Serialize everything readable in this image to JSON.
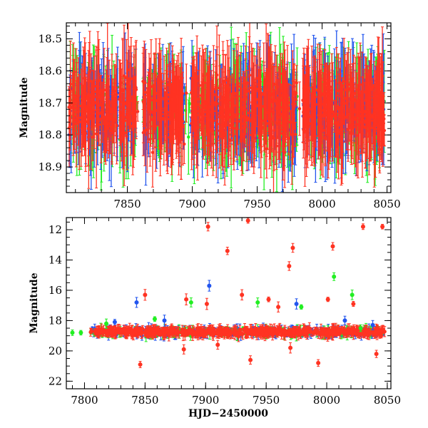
{
  "colors": {
    "blue": "#2255ee",
    "green": "#22ee22",
    "red": "#ff3322"
  },
  "chart_data": [
    {
      "type": "scatter",
      "title": "",
      "xlabel": "",
      "ylabel": "Magnitude",
      "xlim": [
        7803,
        8053
      ],
      "ylim": [
        18.98,
        18.45
      ],
      "xticks": [
        7850,
        7900,
        7950,
        8000,
        8050
      ],
      "yticks": [
        18.5,
        18.6,
        18.7,
        18.8,
        18.9
      ],
      "grid": false,
      "legend": "none",
      "note_series": "Zoomed view: photometry with error bars in three filters (colors: blue, green, red); points dense and extending beyond plot limits.",
      "series": [
        {
          "color": "blue",
          "x_range": [
            7805,
            8048
          ],
          "y_center": 18.72,
          "y_spread": 0.35
        },
        {
          "color": "green",
          "x_range": [
            7805,
            8048
          ],
          "y_center": 18.72,
          "y_spread": 0.35
        },
        {
          "color": "red",
          "x_range": [
            7805,
            8048
          ],
          "y_center": 18.72,
          "y_spread": 0.35
        }
      ]
    },
    {
      "type": "scatter",
      "title": "",
      "xlabel": "HJD−2450000",
      "ylabel": "Magnitude",
      "xlim": [
        7785,
        8053
      ],
      "ylim": [
        22.5,
        11.2
      ],
      "xticks": [
        7800,
        7850,
        7900,
        7950,
        8000,
        8050
      ],
      "yticks": [
        12,
        14,
        16,
        18,
        20,
        22
      ],
      "grid": false,
      "legend": "none",
      "series": [
        {
          "color": "red",
          "band": {
            "x_range": [
              7805,
              8048
            ],
            "y_center": 18.75,
            "y_spread": 0.5
          },
          "points": [
            {
              "x": 7902,
              "y": 11.8
            },
            {
              "x": 7935,
              "y": 11.4
            },
            {
              "x": 7918,
              "y": 13.4
            },
            {
              "x": 7972,
              "y": 13.2
            },
            {
              "x": 7969,
              "y": 14.4
            },
            {
              "x": 8005,
              "y": 13.1
            },
            {
              "x": 8030,
              "y": 11.8
            },
            {
              "x": 8046,
              "y": 11.8
            },
            {
              "x": 7850,
              "y": 16.3
            },
            {
              "x": 7884,
              "y": 16.6
            },
            {
              "x": 7901,
              "y": 16.9
            },
            {
              "x": 7930,
              "y": 16.3
            },
            {
              "x": 7952,
              "y": 16.6
            },
            {
              "x": 7960,
              "y": 17.1
            },
            {
              "x": 8001,
              "y": 16.6
            },
            {
              "x": 8022,
              "y": 16.9
            },
            {
              "x": 7846,
              "y": 20.9
            },
            {
              "x": 7937,
              "y": 20.6
            },
            {
              "x": 7993,
              "y": 20.8
            },
            {
              "x": 8041,
              "y": 20.2
            },
            {
              "x": 7882,
              "y": 19.9
            },
            {
              "x": 7910,
              "y": 19.6
            },
            {
              "x": 7970,
              "y": 19.8
            }
          ]
        },
        {
          "color": "blue",
          "points": [
            {
              "x": 7843,
              "y": 16.8
            },
            {
              "x": 7903,
              "y": 15.7
            },
            {
              "x": 7825,
              "y": 18.1
            },
            {
              "x": 7866,
              "y": 18.0
            },
            {
              "x": 7975,
              "y": 16.9
            },
            {
              "x": 8015,
              "y": 18.0
            },
            {
              "x": 8038,
              "y": 18.3
            }
          ]
        },
        {
          "color": "green",
          "points": [
            {
              "x": 7790,
              "y": 18.8
            },
            {
              "x": 7797,
              "y": 18.8
            },
            {
              "x": 7818,
              "y": 18.2
            },
            {
              "x": 7858,
              "y": 17.9
            },
            {
              "x": 7888,
              "y": 16.8
            },
            {
              "x": 7943,
              "y": 16.8
            },
            {
              "x": 7979,
              "y": 17.1
            },
            {
              "x": 8006,
              "y": 15.1
            },
            {
              "x": 8021,
              "y": 16.3
            },
            {
              "x": 8028,
              "y": 18.5
            }
          ]
        }
      ]
    }
  ]
}
